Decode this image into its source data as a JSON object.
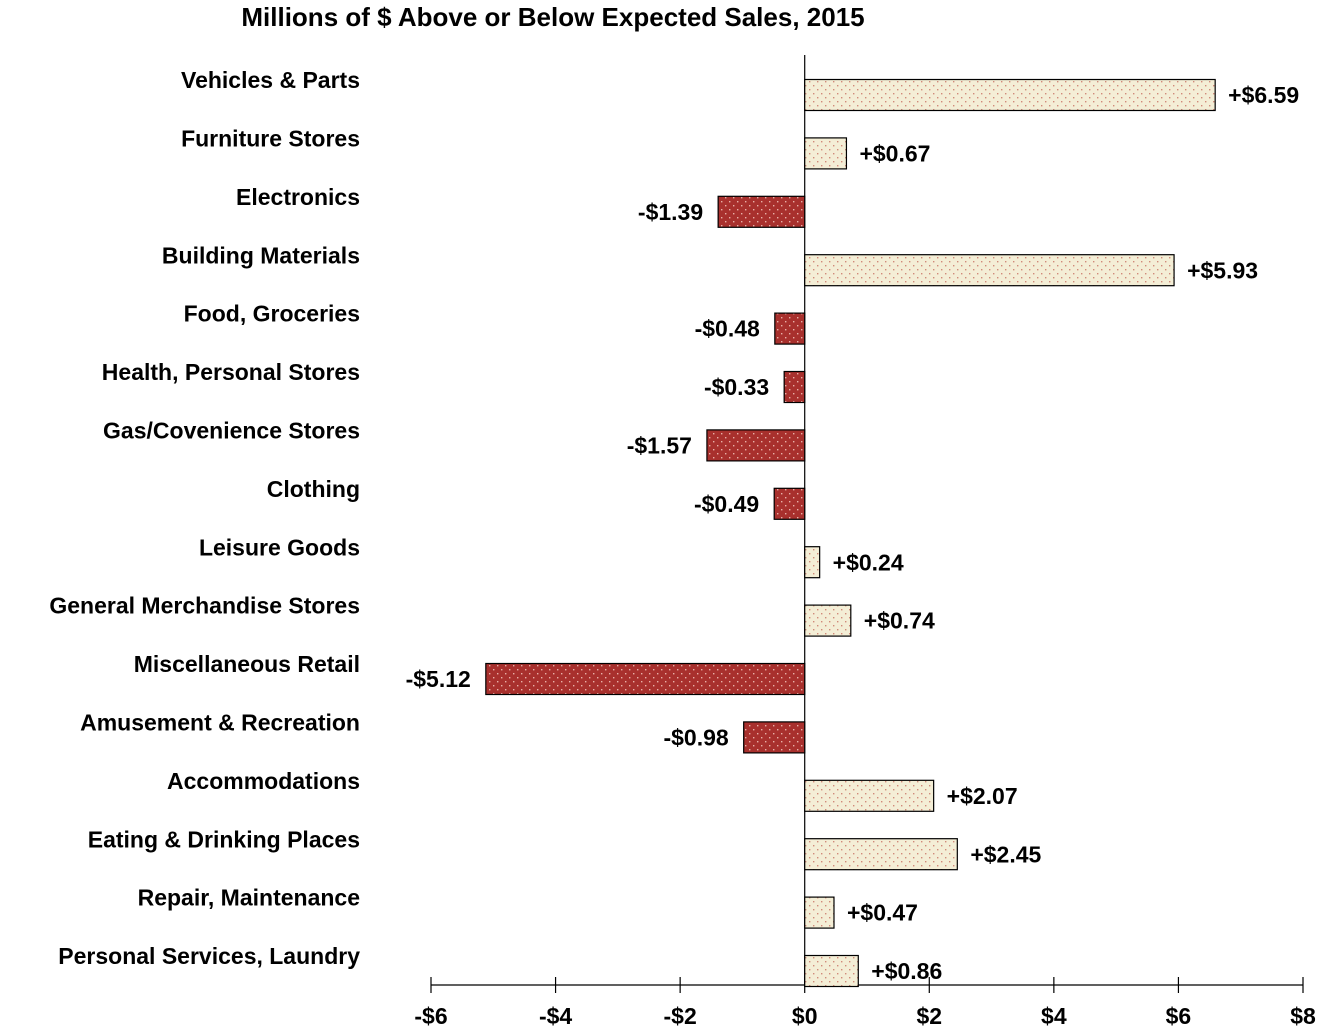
{
  "chart_data": {
    "type": "hbar",
    "title": "Millions of $ Above or Below Expected Sales, 2015",
    "categories": [
      "Vehicles & Parts",
      "Furniture Stores",
      "Electronics",
      "Building Materials",
      "Food, Groceries",
      "Health, Personal Stores",
      "Gas/Covenience Stores",
      "Clothing",
      "Leisure Goods",
      "General Merchandise Stores",
      "Miscellaneous Retail",
      "Amusement & Recreation",
      "Accommodations",
      "Eating & Drinking Places",
      "Repair, Maintenance",
      "Personal Services, Laundry"
    ],
    "values": [
      6.59,
      0.67,
      -1.39,
      5.93,
      -0.48,
      -0.33,
      -1.57,
      -0.49,
      0.24,
      0.74,
      -5.12,
      -0.98,
      2.07,
      2.45,
      0.47,
      0.86
    ],
    "value_labels": [
      "+$6.59",
      "+$0.67",
      "-$1.39",
      "+$5.93",
      "-$0.48",
      "-$0.33",
      "-$1.57",
      "-$0.49",
      "+$0.24",
      "+$0.74",
      "-$5.12",
      "-$0.98",
      "+$2.07",
      "+$2.45",
      "+$0.47",
      "+$0.86"
    ],
    "color_positive": "#f4eed6",
    "color_negative": "#a8302d",
    "xlim": [
      -6,
      8
    ],
    "xticks": [
      {
        "value": -6,
        "label": "-$6"
      },
      {
        "value": -4,
        "label": "-$4"
      },
      {
        "value": -2,
        "label": "-$2"
      },
      {
        "value": 0,
        "label": "$0"
      },
      {
        "value": 2,
        "label": "$2"
      },
      {
        "value": 4,
        "label": "$4"
      },
      {
        "value": 6,
        "label": "$6"
      },
      {
        "value": 8,
        "label": "$8"
      }
    ]
  }
}
